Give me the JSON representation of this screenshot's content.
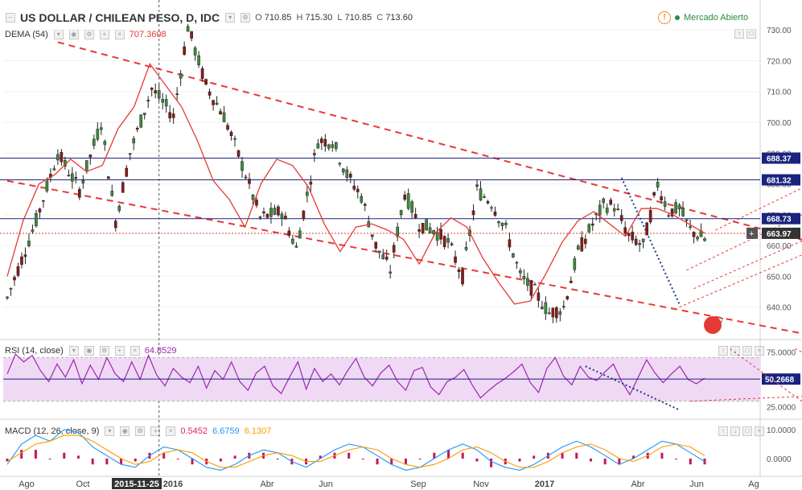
{
  "header": {
    "title": "US DOLLAR / CHILEAN PESO, D, IDC",
    "ohlc": [
      {
        "label": "O",
        "value": "710.85"
      },
      {
        "label": "H",
        "value": "715.30"
      },
      {
        "label": "L",
        "value": "710.85"
      },
      {
        "label": "C",
        "value": "713.60"
      }
    ],
    "market_status": "Mercado Abierto",
    "warning_symbol": "!"
  },
  "indicators": {
    "dema": {
      "label": "DEMA (54)",
      "value": "707.3608",
      "color": "#e53935"
    },
    "rsi": {
      "label": "RSI (14, close)",
      "value": "64.8529",
      "color": "#9c27b0"
    },
    "macd": {
      "label": "MACD (12, 26, close, 9)",
      "values": [
        "0.5452",
        "6.6759",
        "6.1307"
      ],
      "colors": [
        "#e91e63",
        "#2196f3",
        "#ff9800"
      ]
    }
  },
  "colors": {
    "up_candle": "#3d8b3d",
    "down_candle": "#8b1a1a",
    "trend_dashed": "#e53935",
    "hline": "#1a237e",
    "rsi_band": "#f0d9f5",
    "rsi_line": "#9c27b0",
    "macd_hist": "#c2185b",
    "macd_line": "#2196f3",
    "signal_line": "#ff9800",
    "current_price": "#333333"
  },
  "chart_data": [
    {
      "type": "candlestick",
      "series_name": "US DOLLAR / CHILEAN PESO",
      "ylim": [
        630,
        735
      ],
      "yticks": [
        640,
        650,
        660,
        670,
        680,
        690,
        700,
        710,
        720,
        730
      ],
      "ytick_labels": [
        "640.00",
        "650.00",
        "660.00",
        "670.00",
        "680.00",
        "690.00",
        "700.00",
        "710.00",
        "720.00",
        "730.00"
      ],
      "price_path": [
        [
          0,
          643
        ],
        [
          8,
          668
        ],
        [
          14,
          690
        ],
        [
          20,
          678
        ],
        [
          26,
          700
        ],
        [
          30,
          668
        ],
        [
          34,
          690
        ],
        [
          40,
          711
        ],
        [
          46,
          702
        ],
        [
          50,
          731
        ],
        [
          55,
          712
        ],
        [
          60,
          702
        ],
        [
          66,
          683
        ],
        [
          70,
          669
        ],
        [
          76,
          671
        ],
        [
          80,
          659
        ],
        [
          86,
          694
        ],
        [
          90,
          694
        ],
        [
          94,
          683
        ],
        [
          98,
          676
        ],
        [
          102,
          660
        ],
        [
          106,
          652
        ],
        [
          110,
          677
        ],
        [
          114,
          667
        ],
        [
          118,
          665
        ],
        [
          122,
          661
        ],
        [
          126,
          650
        ],
        [
          130,
          678
        ],
        [
          134,
          674
        ],
        [
          138,
          665
        ],
        [
          142,
          650
        ],
        [
          146,
          645
        ],
        [
          150,
          638
        ],
        [
          154,
          640
        ],
        [
          158,
          658
        ],
        [
          162,
          667
        ],
        [
          165,
          673
        ],
        [
          168,
          673
        ],
        [
          172,
          663
        ],
        [
          176,
          660
        ],
        [
          180,
          680
        ],
        [
          183,
          671
        ],
        [
          186,
          672
        ],
        [
          189,
          665
        ],
        [
          193,
          662
        ]
      ],
      "dema_values": [
        650,
        668,
        680,
        683,
        688,
        684,
        686,
        698,
        705,
        719,
        712,
        705,
        694,
        681,
        675,
        666,
        680,
        688,
        686,
        679,
        667,
        658,
        666,
        667,
        665,
        662,
        654,
        664,
        669,
        666,
        656,
        648,
        641,
        642,
        651,
        661,
        668,
        671,
        667,
        663,
        672,
        672,
        670,
        667,
        664
      ],
      "horizontal_levels": [
        {
          "value": 688.37,
          "label": "688.37"
        },
        {
          "value": 681.32,
          "label": "681.32"
        },
        {
          "value": 668.73,
          "label": "668.73"
        }
      ],
      "current_price": {
        "value": 663.97,
        "label": "663.97"
      },
      "x_ticks": [
        "Ago",
        "Oct",
        "2015-11-25",
        "2016",
        "Abr",
        "Jun",
        "Sep",
        "Nov",
        "2017",
        "Abr",
        "Jun",
        "Ag"
      ],
      "crosshair_date": "2015-11-25"
    },
    {
      "type": "line",
      "series_name": "RSI",
      "ylim": [
        15,
        85
      ],
      "yticks": [
        25,
        75
      ],
      "ytick_labels": [
        "25.0000",
        "75.0000"
      ],
      "band": [
        30,
        70
      ],
      "current": {
        "value": 50.2668,
        "label": "50.2668"
      },
      "values": [
        55,
        73,
        66,
        72,
        58,
        48,
        64,
        52,
        68,
        46,
        63,
        50,
        70,
        55,
        48,
        66,
        50,
        72,
        54,
        44,
        60,
        52,
        47,
        62,
        42,
        58,
        50,
        66,
        48,
        40,
        56,
        62,
        44,
        37,
        52,
        66,
        41,
        60,
        48,
        55,
        45,
        58,
        69,
        52,
        44,
        56,
        63,
        48,
        40,
        58,
        61,
        43,
        36,
        48,
        52,
        59,
        45,
        33,
        40,
        46,
        51,
        57,
        64,
        47,
        38,
        60,
        70,
        53,
        45,
        62,
        52,
        49,
        57,
        64,
        48,
        36,
        52,
        68,
        56,
        47,
        55,
        62,
        50,
        46,
        51
      ]
    },
    {
      "type": "macd",
      "series_name": "MACD",
      "ylim": [
        -5,
        13
      ],
      "yticks": [
        0,
        10
      ],
      "ytick_labels": [
        "0.0000",
        "10.0000"
      ],
      "macd": [
        -2,
        5,
        8,
        6,
        10,
        9,
        4,
        1,
        -2,
        -3,
        1,
        4,
        3,
        0,
        -3,
        -4,
        -2,
        1,
        3,
        2,
        -1,
        -3,
        0,
        3,
        5,
        4,
        1,
        -2,
        -4,
        -3,
        0,
        3,
        5,
        3,
        -1,
        -3,
        -4,
        -2,
        1,
        4,
        6,
        4,
        1,
        -2,
        0,
        3,
        6,
        5,
        2,
        -1
      ],
      "signal": [
        -1,
        2,
        5,
        6,
        8,
        8,
        6,
        3,
        0,
        -2,
        -1,
        2,
        3,
        2,
        -1,
        -3,
        -3,
        -1,
        1,
        2,
        1,
        -1,
        -1,
        1,
        3,
        4,
        3,
        0,
        -2,
        -3,
        -2,
        0,
        3,
        4,
        2,
        -1,
        -3,
        -3,
        -1,
        2,
        4,
        5,
        3,
        0,
        -1,
        1,
        4,
        5,
        4,
        1
      ]
    }
  ]
}
